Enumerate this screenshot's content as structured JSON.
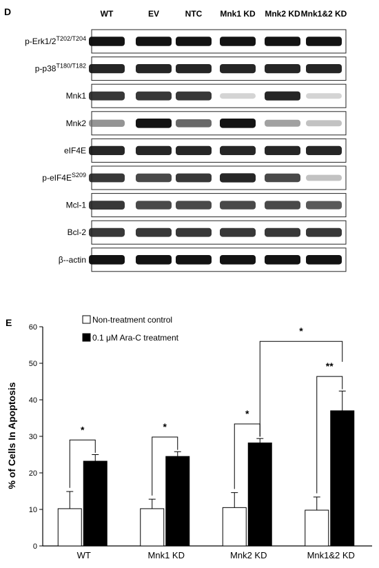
{
  "panel_d": {
    "letter": "D",
    "lanes": [
      "WT",
      "EV",
      "NTC",
      "Mnk1 KD",
      "Mnk2 KD",
      "Mnk1&2 KD"
    ],
    "blots": [
      {
        "label": "p-Erk1/2",
        "sup": "T202/T204",
        "intensity": [
          0.95,
          0.95,
          0.95,
          0.95,
          0.95,
          0.95
        ]
      },
      {
        "label": "p-p38",
        "sup": "T180/T182",
        "intensity": [
          0.9,
          0.9,
          0.9,
          0.9,
          0.9,
          0.9
        ]
      },
      {
        "label": "Mnk1",
        "sup": "",
        "intensity": [
          0.85,
          0.85,
          0.85,
          0.25,
          0.9,
          0.25
        ]
      },
      {
        "label": "Mnk2",
        "sup": "",
        "intensity": [
          0.55,
          0.95,
          0.7,
          0.95,
          0.5,
          0.35
        ]
      },
      {
        "label": "eIF4E",
        "sup": "",
        "intensity": [
          0.9,
          0.9,
          0.9,
          0.9,
          0.9,
          0.9
        ]
      },
      {
        "label": "p-eIF4E",
        "sup": "S209",
        "intensity": [
          0.85,
          0.8,
          0.85,
          0.9,
          0.8,
          0.35
        ]
      },
      {
        "label": "Mcl-1",
        "sup": "",
        "intensity": [
          0.85,
          0.8,
          0.8,
          0.8,
          0.8,
          0.75
        ]
      },
      {
        "label": "Bcl-2",
        "sup": "",
        "intensity": [
          0.85,
          0.85,
          0.85,
          0.85,
          0.85,
          0.85
        ]
      },
      {
        "label": "β--actin",
        "sup": "",
        "intensity": [
          0.95,
          0.95,
          0.95,
          0.95,
          0.95,
          0.95
        ]
      }
    ]
  },
  "panel_e": {
    "letter": "E",
    "chart_data": {
      "type": "bar",
      "categories": [
        "WT",
        "Mnk1 KD",
        "Mnk2 KD",
        "Mnk1&2 KD"
      ],
      "series": [
        {
          "name": "Non-treatment control",
          "values": [
            10.2,
            10.2,
            10.5,
            9.8
          ],
          "errors": [
            4.7,
            2.6,
            4.1,
            3.6
          ],
          "color": "#ffffff"
        },
        {
          "name": "0.1 μM Ara-C treatment",
          "values": [
            23.2,
            24.5,
            28.2,
            37.0
          ],
          "errors": [
            1.8,
            1.3,
            1.2,
            5.4
          ],
          "color": "#000000"
        }
      ],
      "title": "",
      "xlabel": "",
      "ylabel": "% of Cells In Apoptosis",
      "ylim": [
        0,
        60
      ],
      "yticks": [
        0,
        10,
        20,
        30,
        40,
        50,
        60
      ],
      "legend_position": "top-left",
      "grid": false,
      "significance": [
        {
          "group": 0,
          "label": "*"
        },
        {
          "group": 1,
          "label": "*"
        },
        {
          "group": 2,
          "label": "*"
        },
        {
          "group": 3,
          "label": "**"
        },
        {
          "between": [
            2,
            3
          ],
          "label": "*"
        }
      ]
    }
  }
}
